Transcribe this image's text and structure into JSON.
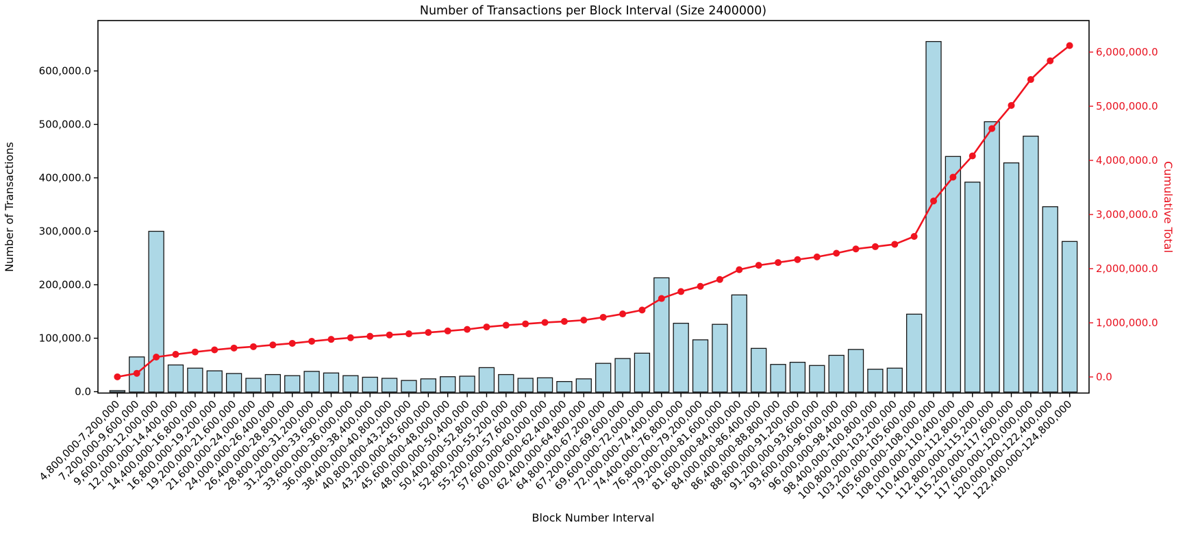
{
  "title": "Number of Transactions per Block Interval (Size 2400000)",
  "axes": {
    "x_label": "Block Number Interval",
    "y_left_label": "Number of Transactions",
    "y_right_label": "Cumulative Total"
  },
  "colors": {
    "bar_fill": "#add8e6",
    "bar_edge": "#141414",
    "line": "#f01420",
    "right_axis_text": "#e8101e",
    "axis_text": "#000000",
    "spine": "#000000",
    "background": "#ffffff"
  },
  "chart_data": {
    "type": "bar",
    "title": "Number of Transactions per Block Interval (Size 2400000)",
    "xlabel": "Block Number Interval",
    "ylabel_left": "Number of Transactions",
    "ylabel_right": "Cumulative Total",
    "grid": false,
    "legend": false,
    "left_axis_ticks": [
      "0.0",
      "100,000.0",
      "200,000.0",
      "300,000.0",
      "400,000.0",
      "500,000.0",
      "600,000.0"
    ],
    "right_axis_ticks": [
      "0.0",
      "1,000,000.0",
      "2,000,000.0",
      "3,000,000.0",
      "4,000,000.0",
      "5,000,000.0",
      "6,000,000.0"
    ],
    "ylim_left": [
      0,
      694000
    ],
    "ylim_right": [
      -290000,
      6580000
    ],
    "categories": [
      "4,800,000-7,200,000",
      "7,200,000-9,600,000",
      "9,600,000-12,000,000",
      "12,000,000-14,400,000",
      "14,400,000-16,800,000",
      "16,800,000-19,200,000",
      "19,200,000-21,600,000",
      "21,600,000-24,000,000",
      "24,000,000-26,400,000",
      "26,400,000-28,800,000",
      "28,800,000-31,200,000",
      "31,200,000-33,600,000",
      "33,600,000-36,000,000",
      "36,000,000-38,400,000",
      "38,400,000-40,800,000",
      "40,800,000-43,200,000",
      "43,200,000-45,600,000",
      "45,600,000-48,000,000",
      "48,000,000-50,400,000",
      "50,400,000-52,800,000",
      "52,800,000-55,200,000",
      "55,200,000-57,600,000",
      "57,600,000-60,000,000",
      "60,000,000-62,400,000",
      "62,400,000-64,800,000",
      "64,800,000-67,200,000",
      "67,200,000-69,600,000",
      "69,600,000-72,000,000",
      "72,000,000-74,400,000",
      "74,400,000-76,800,000",
      "76,800,000-79,200,000",
      "79,200,000-81,600,000",
      "81,600,000-84,000,000",
      "84,000,000-86,400,000",
      "86,400,000-88,800,000",
      "88,800,000-91,200,000",
      "91,200,000-93,600,000",
      "93,600,000-96,000,000",
      "96,000,000-98,400,000",
      "98,400,000-100,800,000",
      "100,800,000-103,200,000",
      "103,200,000-105,600,000",
      "105,600,000-108,000,000",
      "108,000,000-110,400,000",
      "110,400,000-112,800,000",
      "112,800,000-115,200,000",
      "115,200,000-117,600,000",
      "117,600,000-120,000,000",
      "120,000,000-122,400,000",
      "122,400,000-124,800,000"
    ],
    "series": [
      {
        "name": "Number of Transactions",
        "type": "bar",
        "axis": "left",
        "values": [
          2000,
          65000,
          300000,
          50000,
          44000,
          39000,
          34000,
          25000,
          32000,
          30000,
          38000,
          35000,
          30000,
          27000,
          25000,
          21000,
          24000,
          28000,
          29000,
          45000,
          32000,
          25000,
          26000,
          19000,
          24000,
          53000,
          62000,
          72000,
          213000,
          128000,
          97000,
          126000,
          181000,
          81000,
          51000,
          55000,
          49000,
          68000,
          79000,
          42000,
          44000,
          145000,
          655000,
          440000,
          392000,
          505000,
          428000,
          478000,
          346000,
          281000
        ]
      },
      {
        "name": "Cumulative Total",
        "type": "line",
        "axis": "right",
        "values": [
          2000,
          67000,
          367000,
          417000,
          461000,
          500000,
          534000,
          559000,
          591000,
          621000,
          659000,
          694000,
          724000,
          751000,
          776000,
          797000,
          821000,
          849000,
          878000,
          923000,
          955000,
          980000,
          1006000,
          1025000,
          1049000,
          1102000,
          1164000,
          1236000,
          1449000,
          1577000,
          1674000,
          1800000,
          1981000,
          2062000,
          2113000,
          2168000,
          2217000,
          2285000,
          2364000,
          2406000,
          2450000,
          2595000,
          3250000,
          3690000,
          4082000,
          4587000,
          5015000,
          5493000,
          5839000,
          6120000
        ]
      }
    ]
  }
}
